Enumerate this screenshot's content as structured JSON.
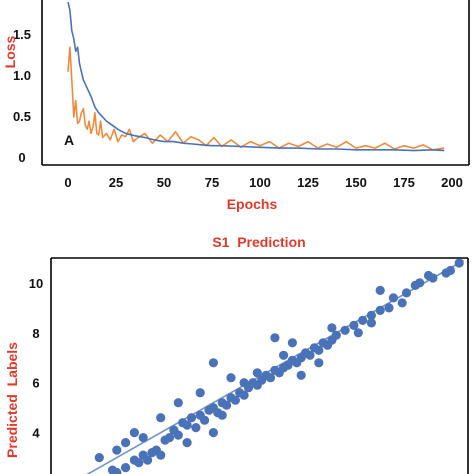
{
  "chart_data": [
    {
      "type": "line",
      "panel_label": "A",
      "xlabel": "Epochs",
      "ylabel": "Loss",
      "xlim": [
        0,
        200
      ],
      "ylim": [
        0,
        1.9
      ],
      "x_ticks": [
        "0",
        "25",
        "50",
        "75",
        "100",
        "125",
        "150",
        "175",
        "200"
      ],
      "y_ticks": [
        {
          "value": 0,
          "label": "0"
        },
        {
          "value": 0.5,
          "label": "0.5"
        },
        {
          "value": 1.0,
          "label": "1.0"
        },
        {
          "value": 1.5,
          "label": "1.5"
        }
      ],
      "grid": false,
      "series": [
        {
          "color": "#4a72b8",
          "x": [
            0,
            1,
            2,
            3,
            4,
            5,
            6,
            7,
            8,
            9,
            10,
            12,
            14,
            16,
            18,
            20,
            23,
            26,
            30,
            35,
            40,
            45,
            50,
            55,
            60,
            65,
            70,
            75,
            80,
            90,
            100,
            110,
            120,
            130,
            140,
            150,
            160,
            170,
            180,
            190,
            196
          ],
          "y": [
            1.9,
            1.8,
            1.55,
            1.45,
            1.3,
            1.35,
            1.15,
            1.05,
            0.95,
            0.9,
            0.85,
            0.75,
            0.62,
            0.55,
            0.5,
            0.45,
            0.4,
            0.35,
            0.3,
            0.27,
            0.25,
            0.22,
            0.2,
            0.2,
            0.18,
            0.17,
            0.16,
            0.15,
            0.15,
            0.14,
            0.13,
            0.12,
            0.12,
            0.11,
            0.11,
            0.1,
            0.1,
            0.1,
            0.09,
            0.1,
            0.09
          ]
        },
        {
          "color": "#ef8a3c",
          "x": [
            0,
            1,
            2,
            3,
            4,
            5,
            6,
            7,
            8,
            9,
            10,
            11,
            12,
            13,
            14,
            15,
            16,
            17,
            18,
            20,
            22,
            24,
            26,
            28,
            30,
            32,
            34,
            36,
            40,
            44,
            48,
            52,
            56,
            60,
            64,
            68,
            72,
            76,
            80,
            85,
            90,
            95,
            100,
            105,
            110,
            115,
            120,
            125,
            130,
            135,
            140,
            145,
            150,
            155,
            160,
            165,
            170,
            175,
            180,
            185,
            190,
            196
          ],
          "y": [
            1.05,
            1.35,
            0.95,
            0.5,
            0.7,
            0.42,
            0.45,
            0.55,
            0.6,
            0.4,
            0.35,
            0.45,
            0.3,
            0.38,
            0.55,
            0.3,
            0.28,
            0.45,
            0.25,
            0.3,
            0.22,
            0.35,
            0.2,
            0.28,
            0.26,
            0.35,
            0.2,
            0.24,
            0.3,
            0.18,
            0.28,
            0.2,
            0.32,
            0.18,
            0.26,
            0.22,
            0.15,
            0.25,
            0.14,
            0.22,
            0.13,
            0.2,
            0.15,
            0.2,
            0.12,
            0.18,
            0.14,
            0.2,
            0.12,
            0.17,
            0.13,
            0.2,
            0.12,
            0.15,
            0.12,
            0.18,
            0.11,
            0.15,
            0.12,
            0.16,
            0.1,
            0.12
          ]
        }
      ]
    },
    {
      "type": "scatter",
      "title": "S1  Prediction",
      "ylabel": "Predicted  Labels",
      "xlim": [
        1.5,
        11
      ],
      "ylim": [
        1.5,
        11
      ],
      "y_ticks": [
        {
          "value": 4,
          "label": "4"
        },
        {
          "value": 6,
          "label": "6"
        },
        {
          "value": 8,
          "label": "8"
        },
        {
          "value": 10,
          "label": "10"
        }
      ],
      "grid": false,
      "point_color": "#4a72b8",
      "fit_line": {
        "color": "#6f93cc",
        "x": [
          2.2,
          10.9
        ],
        "y": [
          2.2,
          10.9
        ]
      },
      "points": [
        [
          2.9,
          2.5
        ],
        [
          3.0,
          2.4
        ],
        [
          3.2,
          2.6
        ],
        [
          3.4,
          2.9
        ],
        [
          3.5,
          2.8
        ],
        [
          3.6,
          3.1
        ],
        [
          3.7,
          2.9
        ],
        [
          3.8,
          3.2
        ],
        [
          3.9,
          3.3
        ],
        [
          4.0,
          3.1
        ],
        [
          4.1,
          3.7
        ],
        [
          4.2,
          3.8
        ],
        [
          4.3,
          4.1
        ],
        [
          4.4,
          3.9
        ],
        [
          4.5,
          4.4
        ],
        [
          4.6,
          4.3
        ],
        [
          4.7,
          4.6
        ],
        [
          4.8,
          4.2
        ],
        [
          4.9,
          4.7
        ],
        [
          5.0,
          4.5
        ],
        [
          5.1,
          4.9
        ],
        [
          5.2,
          5.0
        ],
        [
          5.3,
          4.8
        ],
        [
          5.4,
          5.2
        ],
        [
          5.5,
          5.1
        ],
        [
          5.6,
          5.4
        ],
        [
          5.7,
          5.3
        ],
        [
          5.8,
          5.6
        ],
        [
          5.9,
          5.5
        ],
        [
          6.0,
          5.8
        ],
        [
          6.1,
          6.0
        ],
        [
          6.2,
          5.9
        ],
        [
          6.3,
          6.1
        ],
        [
          6.4,
          6.3
        ],
        [
          6.5,
          6.2
        ],
        [
          6.6,
          6.5
        ],
        [
          6.7,
          6.4
        ],
        [
          6.8,
          6.6
        ],
        [
          6.9,
          6.7
        ],
        [
          7.0,
          6.9
        ],
        [
          7.1,
          6.8
        ],
        [
          7.2,
          7.0
        ],
        [
          7.3,
          7.2
        ],
        [
          7.4,
          7.1
        ],
        [
          7.5,
          7.4
        ],
        [
          7.6,
          7.3
        ],
        [
          7.7,
          7.6
        ],
        [
          7.8,
          7.5
        ],
        [
          7.9,
          7.7
        ],
        [
          8.0,
          7.9
        ],
        [
          8.2,
          8.1
        ],
        [
          8.4,
          8.3
        ],
        [
          8.6,
          8.5
        ],
        [
          8.8,
          8.7
        ],
        [
          9.0,
          8.9
        ],
        [
          9.3,
          9.4
        ],
        [
          9.6,
          9.6
        ],
        [
          9.9,
          10.0
        ],
        [
          10.2,
          10.2
        ],
        [
          10.5,
          10.4
        ],
        [
          10.8,
          10.8
        ],
        [
          10.6,
          10.5
        ],
        [
          9.8,
          9.9
        ],
        [
          10.1,
          10.3
        ],
        [
          9.0,
          9.7
        ],
        [
          9.5,
          9.2
        ],
        [
          8.5,
          8.0
        ],
        [
          5.2,
          6.8
        ],
        [
          3.4,
          4.0
        ],
        [
          6.6,
          7.8
        ],
        [
          4.0,
          4.6
        ],
        [
          4.4,
          5.2
        ],
        [
          5.6,
          6.2
        ],
        [
          6.2,
          6.4
        ],
        [
          7.2,
          6.3
        ],
        [
          7.6,
          6.8
        ],
        [
          5.2,
          4.0
        ],
        [
          4.6,
          3.6
        ],
        [
          3.2,
          3.6
        ],
        [
          2.6,
          3.0
        ],
        [
          3.0,
          3.3
        ],
        [
          3.6,
          3.8
        ],
        [
          4.9,
          5.6
        ],
        [
          5.9,
          6.0
        ],
        [
          6.8,
          7.1
        ],
        [
          7.0,
          7.6
        ],
        [
          7.9,
          8.2
        ],
        [
          8.8,
          8.4
        ],
        [
          9.2,
          9.0
        ],
        [
          5.4,
          4.7
        ]
      ]
    }
  ]
}
